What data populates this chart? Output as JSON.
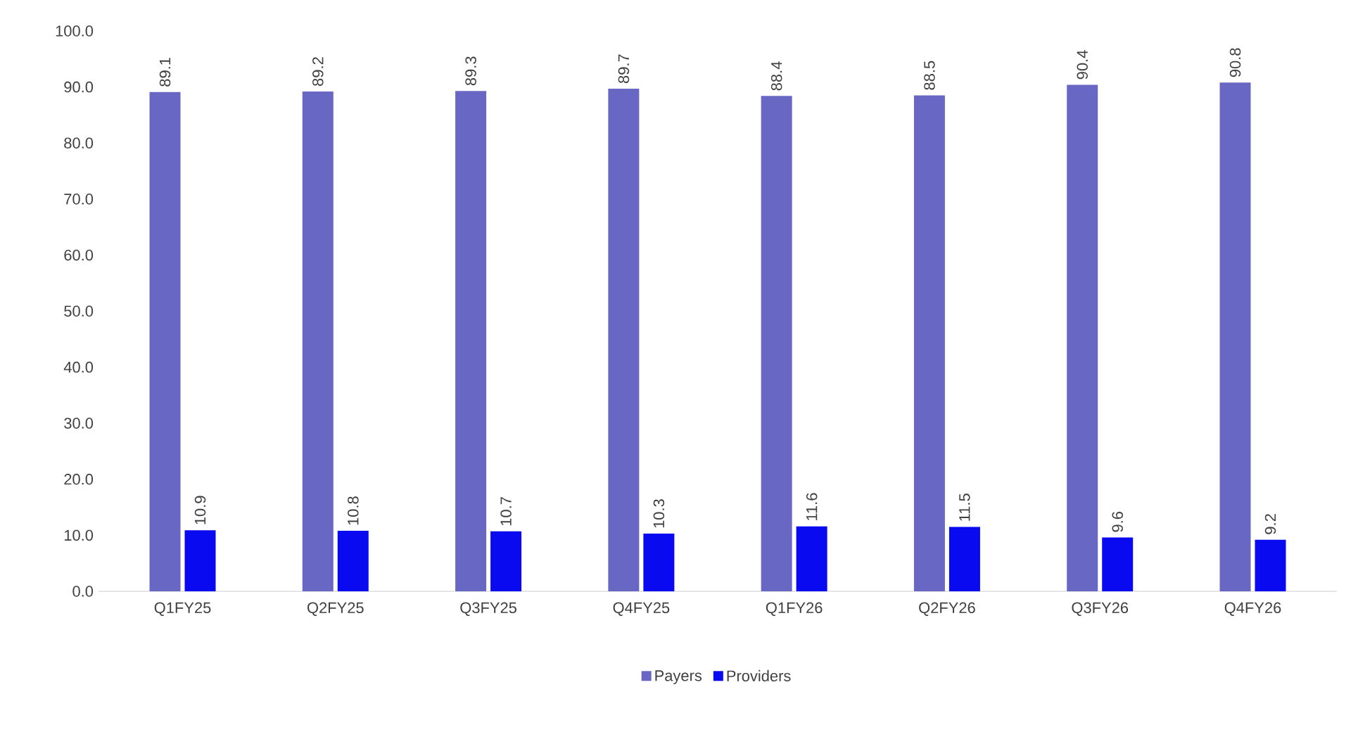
{
  "chart_data": {
    "type": "bar",
    "categories": [
      "Q1FY25",
      "Q2FY25",
      "Q3FY25",
      "Q4FY25",
      "Q1FY26",
      "Q2FY26",
      "Q3FY26",
      "Q4FY26"
    ],
    "series": [
      {
        "name": "Payers",
        "color": "#6868c4",
        "values": [
          89.1,
          89.2,
          89.3,
          89.7,
          88.4,
          88.5,
          90.4,
          90.8
        ]
      },
      {
        "name": "Providers",
        "color": "#0a0af0",
        "values": [
          10.9,
          10.8,
          10.7,
          10.3,
          11.6,
          11.5,
          9.6,
          9.2
        ]
      }
    ],
    "ylim": [
      0,
      100
    ],
    "yticks": [
      {
        "value": 0,
        "label": "0.0"
      },
      {
        "value": 10,
        "label": "10.0"
      },
      {
        "value": 20,
        "label": "20.0"
      },
      {
        "value": 30,
        "label": "30.0"
      },
      {
        "value": 40,
        "label": "40.0"
      },
      {
        "value": 50,
        "label": "50.0"
      },
      {
        "value": 60,
        "label": "60.0"
      },
      {
        "value": 70,
        "label": "70.0"
      },
      {
        "value": 80,
        "label": "80.0"
      },
      {
        "value": 90,
        "label": "90.0"
      },
      {
        "value": 100,
        "label": "100.0"
      }
    ],
    "data_labels": true,
    "legend": "bottom",
    "grid": false
  }
}
